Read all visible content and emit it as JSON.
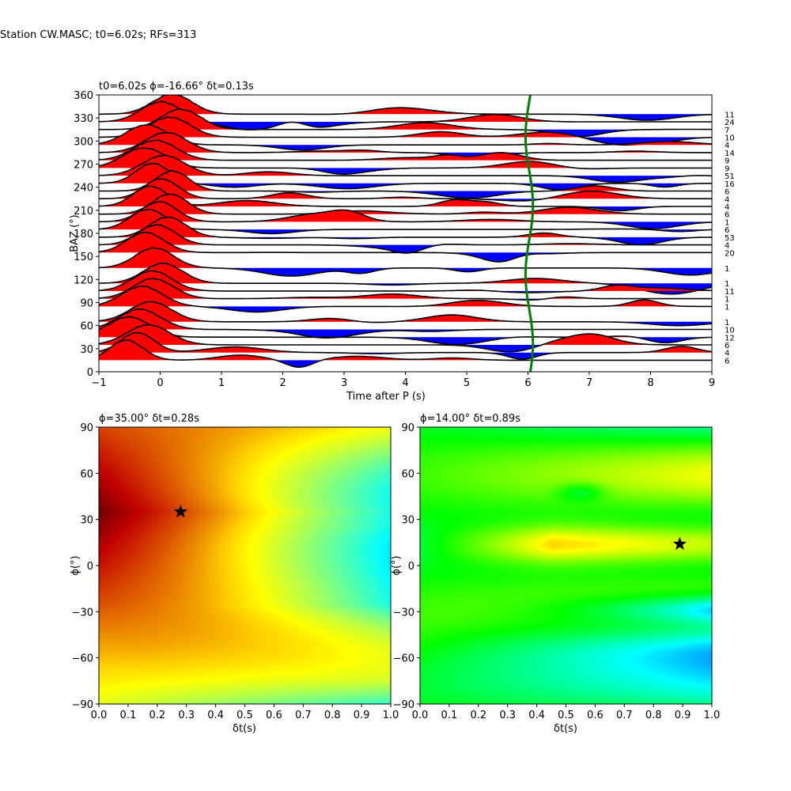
{
  "suptitle": "Station CW.MASC; t0=6.02s; RFs=313",
  "colors": {
    "positive_fill": "#ff0000",
    "negative_fill": "#0000ff",
    "trace_line": "#000000",
    "t0_curve": "#008000",
    "star": "#000000"
  },
  "chart_data": [
    {
      "type": "line",
      "panel": "receiver-functions-vs-baz",
      "title": "t0=6.02s ϕ=-16.66° δt=0.13s",
      "xlabel": "Time after P (s)",
      "ylabel": "BAZ (°)",
      "xlim": [
        -1,
        9
      ],
      "ylim": [
        0,
        360
      ],
      "xticks": [
        "−1",
        "0",
        "1",
        "2",
        "3",
        "4",
        "5",
        "6",
        "7",
        "8",
        "9"
      ],
      "yticks": [
        "0",
        "30",
        "60",
        "90",
        "120",
        "150",
        "180",
        "210",
        "240",
        "270",
        "300",
        "330",
        "360"
      ],
      "traces": [
        {
          "baz": 15,
          "count": "6"
        },
        {
          "baz": 25,
          "count": "4"
        },
        {
          "baz": 35,
          "count": "6"
        },
        {
          "baz": 45,
          "count": "12"
        },
        {
          "baz": 55,
          "count": "10"
        },
        {
          "baz": 65,
          "count": "1"
        },
        {
          "baz": 85,
          "count": "1"
        },
        {
          "baz": 95,
          "count": "1"
        },
        {
          "baz": 105,
          "count": "11"
        },
        {
          "baz": 115,
          "count": "1"
        },
        {
          "baz": 135,
          "count": "1"
        },
        {
          "baz": 155,
          "count": "20"
        },
        {
          "baz": 165,
          "count": "4"
        },
        {
          "baz": 175,
          "count": "53"
        },
        {
          "baz": 185,
          "count": "6"
        },
        {
          "baz": 195,
          "count": "1"
        },
        {
          "baz": 205,
          "count": "6"
        },
        {
          "baz": 215,
          "count": "4"
        },
        {
          "baz": 225,
          "count": "4"
        },
        {
          "baz": 235,
          "count": "6"
        },
        {
          "baz": 245,
          "count": "16"
        },
        {
          "baz": 255,
          "count": "51"
        },
        {
          "baz": 265,
          "count": "9"
        },
        {
          "baz": 275,
          "count": "9"
        },
        {
          "baz": 285,
          "count": "14"
        },
        {
          "baz": 295,
          "count": "4"
        },
        {
          "baz": 305,
          "count": "10"
        },
        {
          "baz": 315,
          "count": "7"
        },
        {
          "baz": 325,
          "count": "24"
        },
        {
          "baz": 335,
          "count": "11"
        }
      ],
      "t0_curve": {
        "name": "t0",
        "mean_time": 6.02
      }
    },
    {
      "type": "heatmap",
      "panel": "grid-search-left",
      "title": "ϕ=35.00° δt=0.28s",
      "xlabel": "δt(s)",
      "ylabel": "ϕ(°)",
      "xlim": [
        0,
        1
      ],
      "ylim": [
        -90,
        90
      ],
      "xticks": [
        "0.0",
        "0.1",
        "0.2",
        "0.3",
        "0.4",
        "0.5",
        "0.6",
        "0.7",
        "0.8",
        "0.9",
        "1.0"
      ],
      "yticks": [
        "−90",
        "−60",
        "−30",
        "0",
        "30",
        "60",
        "90"
      ],
      "colormap": "hot-to-jet",
      "best": {
        "dt": 0.28,
        "phi": 35.0
      }
    },
    {
      "type": "heatmap",
      "panel": "grid-search-right",
      "title": "ϕ=14.00° δt=0.89s",
      "xlabel": "δt(s)",
      "ylabel": "ϕ(°)",
      "xlim": [
        0,
        1
      ],
      "ylim": [
        -90,
        90
      ],
      "xticks": [
        "0.0",
        "0.1",
        "0.2",
        "0.3",
        "0.4",
        "0.5",
        "0.6",
        "0.7",
        "0.8",
        "0.9",
        "1.0"
      ],
      "yticks": [
        "−90",
        "−60",
        "−30",
        "0",
        "30",
        "60",
        "90"
      ],
      "colormap": "hsv",
      "best": {
        "dt": 0.89,
        "phi": 14.0
      }
    }
  ]
}
